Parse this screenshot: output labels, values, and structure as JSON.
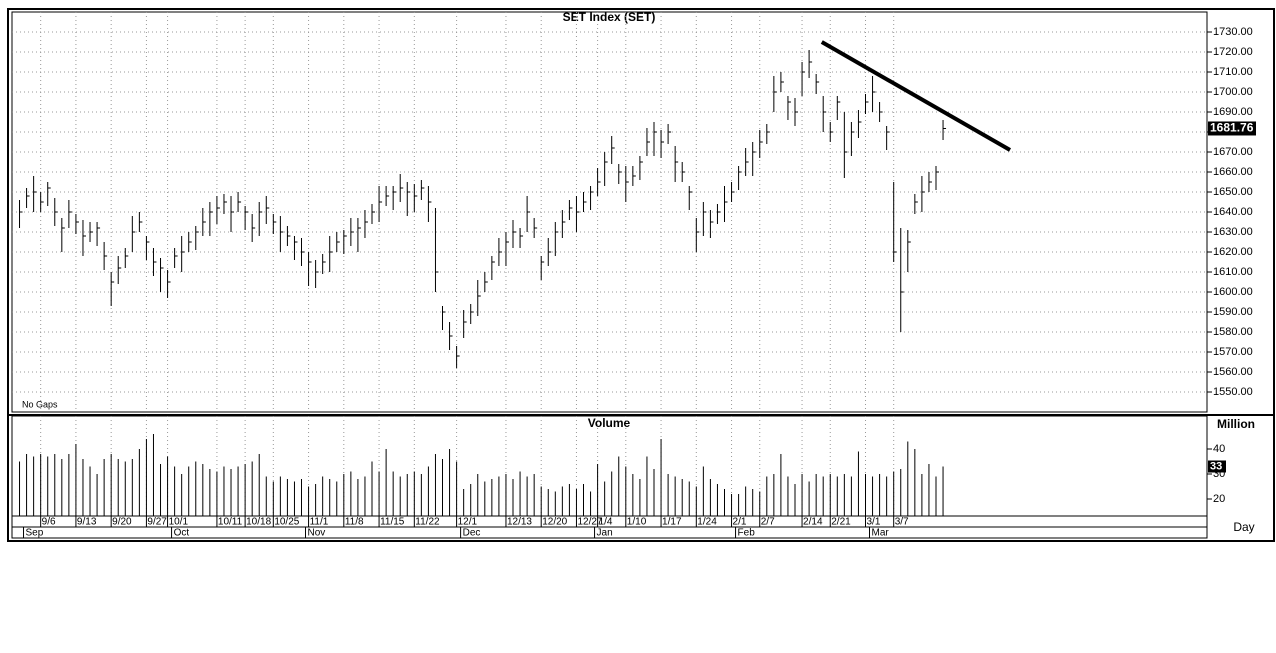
{
  "chart_data": {
    "type": "ohlc",
    "title": "SET  Index  (SET)",
    "note": "No Gaps",
    "x_label": "Day",
    "xlim": [
      -0.5,
      168.3
    ],
    "xticks": [
      {
        "value": 3,
        "label": "9/6"
      },
      {
        "value": 8,
        "label": "9/13"
      },
      {
        "value": 13,
        "label": "9/20"
      },
      {
        "value": 18,
        "label": "9/27"
      },
      {
        "value": 21,
        "label": "10/1"
      },
      {
        "value": 28,
        "label": "10/11"
      },
      {
        "value": 32,
        "label": "10/18"
      },
      {
        "value": 36,
        "label": "10/25"
      },
      {
        "value": 41,
        "label": "11/1"
      },
      {
        "value": 46,
        "label": "11/8"
      },
      {
        "value": 51,
        "label": "11/15"
      },
      {
        "value": 56,
        "label": "11/22"
      },
      {
        "value": 62,
        "label": "12/1"
      },
      {
        "value": 69,
        "label": "12/13"
      },
      {
        "value": 74,
        "label": "12/20"
      },
      {
        "value": 79,
        "label": "12/27"
      },
      {
        "value": 82,
        "label": "1/4"
      },
      {
        "value": 86,
        "label": "1/10"
      },
      {
        "value": 91,
        "label": "1/17"
      },
      {
        "value": 96,
        "label": "1/24"
      },
      {
        "value": 101,
        "label": "2/1"
      },
      {
        "value": 105,
        "label": "2/7"
      },
      {
        "value": 111,
        "label": "2/14"
      },
      {
        "value": 115,
        "label": "2/21"
      },
      {
        "value": 120,
        "label": "3/1"
      },
      {
        "value": 124,
        "label": "3/7"
      }
    ],
    "month_ticks": [
      {
        "value": 0,
        "label": "Sep"
      },
      {
        "value": 21,
        "label": "Oct"
      },
      {
        "value": 40,
        "label": "Nov"
      },
      {
        "value": 62,
        "label": "Dec"
      },
      {
        "value": 81,
        "label": "Jan"
      },
      {
        "value": 101,
        "label": "Feb"
      },
      {
        "value": 120,
        "label": "Mar"
      }
    ],
    "ylim": [
      1540,
      1740
    ],
    "yticks": [
      {
        "value": 1550,
        "label": "1550.00"
      },
      {
        "value": 1560,
        "label": "1560.00"
      },
      {
        "value": 1570,
        "label": "1570.00"
      },
      {
        "value": 1580,
        "label": "1580.00"
      },
      {
        "value": 1590,
        "label": "1590.00"
      },
      {
        "value": 1600,
        "label": "1600.00"
      },
      {
        "value": 1610,
        "label": "1610.00"
      },
      {
        "value": 1620,
        "label": "1620.00"
      },
      {
        "value": 1630,
        "label": "1630.00"
      },
      {
        "value": 1640,
        "label": "1640.00"
      },
      {
        "value": 1650,
        "label": "1650.00"
      },
      {
        "value": 1660,
        "label": "1660.00"
      },
      {
        "value": 1670,
        "label": "1670.00"
      },
      {
        "value": 1680,
        "label": "1680.00"
      },
      {
        "value": 1690,
        "label": "1690.00"
      },
      {
        "value": 1700,
        "label": "1700.00"
      },
      {
        "value": 1710,
        "label": "1710.00"
      },
      {
        "value": 1720,
        "label": "1720.00"
      },
      {
        "value": 1730,
        "label": "1730.00"
      }
    ],
    "high": [
      1646,
      1652,
      1658,
      1650,
      1655,
      1647,
      1637,
      1646,
      1639,
      1636,
      1635,
      1635,
      1625,
      1610,
      1618,
      1622,
      1638,
      1640,
      1628,
      1622,
      1617,
      1611,
      1622,
      1628,
      1630,
      1633,
      1642,
      1645,
      1648,
      1649,
      1648,
      1650,
      1643,
      1639,
      1645,
      1648,
      1639,
      1638,
      1633,
      1628,
      1627,
      1620,
      1616,
      1619,
      1628,
      1630,
      1631,
      1637,
      1637,
      1641,
      1644,
      1653,
      1653,
      1653,
      1659,
      1655,
      1654,
      1656,
      1653,
      1642,
      1593,
      1585,
      1573,
      1591,
      1594,
      1606,
      1610,
      1618,
      1627,
      1630,
      1636,
      1632,
      1648,
      1637,
      1618,
      1627,
      1635,
      1641,
      1646,
      1648,
      1650,
      1653,
      1662,
      1670,
      1678,
      1664,
      1663,
      1663,
      1668,
      1682,
      1685,
      1681,
      1684,
      1673,
      1665,
      1653,
      1637,
      1645,
      1641,
      1644,
      1653,
      1655,
      1663,
      1672,
      1675,
      1681,
      1684,
      1708,
      1710,
      1698,
      1697,
      1715,
      1721,
      1709,
      1698,
      1685,
      1698,
      1690,
      1685,
      1691,
      1699,
      1708,
      1695,
      1683,
      1655,
      1632,
      1631,
      1649,
      1658,
      1660,
      1663,
      1686
    ],
    "low": [
      1632,
      1642,
      1640,
      1640,
      1643,
      1633,
      1620,
      1632,
      1629,
      1618,
      1625,
      1623,
      1611,
      1593,
      1604,
      1612,
      1620,
      1630,
      1616,
      1608,
      1600,
      1597,
      1612,
      1610,
      1620,
      1621,
      1628,
      1628,
      1634,
      1639,
      1630,
      1640,
      1631,
      1625,
      1628,
      1634,
      1629,
      1620,
      1623,
      1616,
      1613,
      1603,
      1602,
      1609,
      1610,
      1620,
      1619,
      1623,
      1620,
      1627,
      1634,
      1635,
      1643,
      1641,
      1645,
      1638,
      1640,
      1646,
      1635,
      1600,
      1581,
      1571,
      1562,
      1577,
      1584,
      1588,
      1600,
      1606,
      1613,
      1613,
      1622,
      1622,
      1630,
      1627,
      1606,
      1613,
      1618,
      1627,
      1636,
      1630,
      1640,
      1641,
      1648,
      1653,
      1664,
      1654,
      1645,
      1653,
      1656,
      1668,
      1668,
      1667,
      1674,
      1655,
      1655,
      1641,
      1620,
      1628,
      1627,
      1634,
      1635,
      1645,
      1651,
      1658,
      1658,
      1667,
      1674,
      1690,
      1700,
      1686,
      1683,
      1698,
      1707,
      1699,
      1680,
      1675,
      1686,
      1657,
      1668,
      1677,
      1689,
      1690,
      1685,
      1671,
      1615,
      1580,
      1610,
      1639,
      1640,
      1650,
      1651,
      1676
    ],
    "close": [
      1640,
      1648,
      1650,
      1645,
      1652,
      1640,
      1632,
      1640,
      1635,
      1628,
      1630,
      1632,
      1618,
      1605,
      1612,
      1618,
      1630,
      1635,
      1625,
      1615,
      1612,
      1605,
      1618,
      1620,
      1625,
      1630,
      1635,
      1640,
      1642,
      1645,
      1640,
      1645,
      1640,
      1632,
      1640,
      1642,
      1635,
      1630,
      1628,
      1625,
      1620,
      1615,
      1610,
      1615,
      1620,
      1625,
      1628,
      1630,
      1632,
      1635,
      1640,
      1645,
      1648,
      1650,
      1652,
      1650,
      1648,
      1652,
      1645,
      1610,
      1590,
      1578,
      1568,
      1585,
      1590,
      1598,
      1605,
      1615,
      1620,
      1625,
      1630,
      1628,
      1640,
      1632,
      1615,
      1620,
      1630,
      1635,
      1642,
      1640,
      1645,
      1650,
      1655,
      1665,
      1672,
      1660,
      1655,
      1658,
      1665,
      1675,
      1680,
      1675,
      1680,
      1665,
      1660,
      1650,
      1630,
      1640,
      1635,
      1640,
      1645,
      1650,
      1660,
      1665,
      1670,
      1675,
      1680,
      1700,
      1705,
      1695,
      1690,
      1710,
      1715,
      1705,
      1690,
      1680,
      1695,
      1670,
      1680,
      1685,
      1695,
      1700,
      1690,
      1680,
      1620,
      1600,
      1625,
      1645,
      1650,
      1655,
      1660,
      1681.76
    ],
    "trendline": {
      "x": [
        113.8,
        140.5
      ],
      "y": [
        1725,
        1671
      ]
    },
    "volume": {
      "title": "Volume",
      "unit": "Million",
      "ylim": [
        13.2,
        53.2
      ],
      "yticks": [
        20,
        30,
        40
      ],
      "values": [
        35,
        38,
        37,
        38,
        37,
        38,
        36,
        38,
        42,
        36,
        33,
        30,
        36,
        38,
        36,
        35,
        36,
        40,
        44,
        46,
        34,
        37,
        33,
        30,
        33,
        35,
        34,
        32,
        31,
        33,
        32,
        33,
        34,
        35,
        38,
        29,
        27,
        29,
        28,
        27,
        28,
        25,
        26,
        29,
        28,
        27,
        30,
        31,
        28,
        29,
        35,
        31,
        40,
        31,
        29,
        30,
        31,
        30,
        33,
        38,
        36,
        40,
        35,
        24,
        26,
        30,
        27,
        28,
        29,
        30,
        28,
        31,
        29,
        30,
        25,
        24,
        23,
        25,
        26,
        24,
        26,
        23,
        34,
        27,
        31,
        37,
        33,
        30,
        28,
        37,
        32,
        44,
        30,
        29,
        28,
        27,
        25,
        33,
        28,
        26,
        24,
        22,
        22,
        25,
        24,
        23,
        29,
        30,
        38,
        29,
        26,
        30,
        27,
        30,
        29,
        30,
        29,
        30,
        29,
        39,
        30,
        29,
        30,
        29,
        31,
        32,
        43,
        40,
        30,
        34,
        29,
        33
      ]
    }
  }
}
